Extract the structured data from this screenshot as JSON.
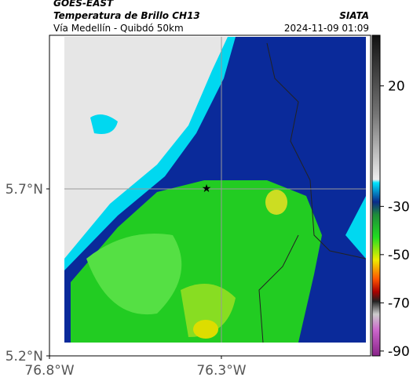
{
  "header": {
    "source": "GOES-EAST",
    "title": "Temperatura de Brillo CH13",
    "subtitle": "Vía Medellín - Quibdó 50km",
    "agency": "SIATA",
    "datetime": "2024-11-09 01:09"
  },
  "map": {
    "xlim": [
      -76.8,
      -75.866
    ],
    "ylim": [
      5.2,
      6.16
    ],
    "xticks": [
      {
        "value": -76.8,
        "label": "76.8°W"
      },
      {
        "value": -76.3,
        "label": "76.3°W"
      }
    ],
    "yticks": [
      {
        "value": 5.7,
        "label": "5.7°N"
      },
      {
        "value": 5.2,
        "label": "5.2°N"
      }
    ]
  },
  "colorbar": {
    "clim": [
      -92,
      41
    ],
    "ticks": [
      20,
      -30,
      -50,
      -70,
      -90
    ]
  }
}
